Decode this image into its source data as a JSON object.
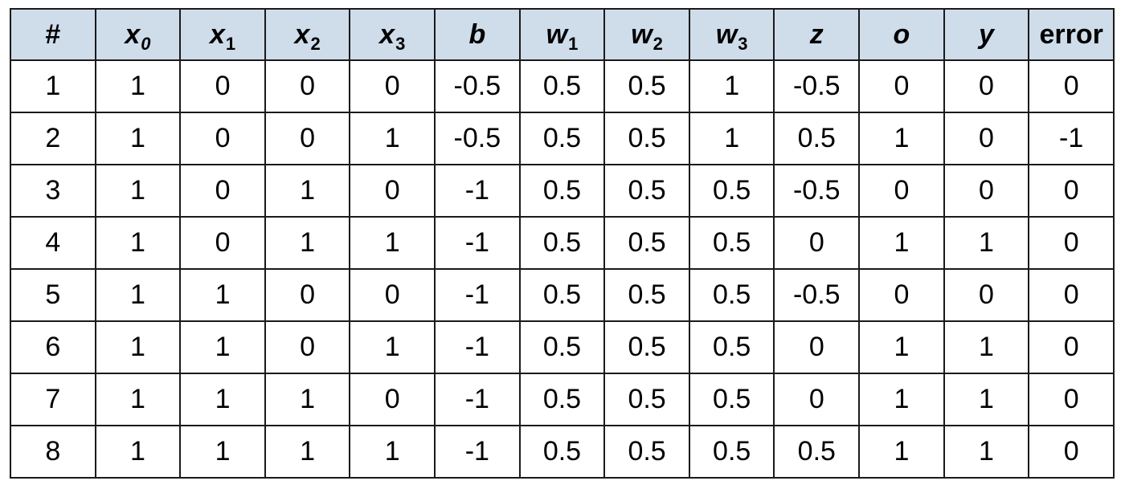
{
  "table": {
    "headers": [
      {
        "base": "#",
        "sub": "",
        "italic": false,
        "sub_italic": false
      },
      {
        "base": "x",
        "sub": "0",
        "italic": true,
        "sub_italic": true
      },
      {
        "base": "x",
        "sub": "1",
        "italic": true,
        "sub_italic": false
      },
      {
        "base": "x",
        "sub": "2",
        "italic": true,
        "sub_italic": false
      },
      {
        "base": "x",
        "sub": "3",
        "italic": true,
        "sub_italic": false
      },
      {
        "base": "b",
        "sub": "",
        "italic": true,
        "sub_italic": false
      },
      {
        "base": "w",
        "sub": "1",
        "italic": true,
        "sub_italic": false
      },
      {
        "base": "w",
        "sub": "2",
        "italic": true,
        "sub_italic": false
      },
      {
        "base": "w",
        "sub": "3",
        "italic": true,
        "sub_italic": false
      },
      {
        "base": "z",
        "sub": "",
        "italic": true,
        "sub_italic": false
      },
      {
        "base": "o",
        "sub": "",
        "italic": true,
        "sub_italic": false
      },
      {
        "base": "y",
        "sub": "",
        "italic": true,
        "sub_italic": false
      },
      {
        "base": "error",
        "sub": "",
        "italic": false,
        "sub_italic": false
      }
    ],
    "rows": [
      [
        "1",
        "1",
        "0",
        "0",
        "0",
        "-0.5",
        "0.5",
        "0.5",
        "1",
        "-0.5",
        "0",
        "0",
        "0"
      ],
      [
        "2",
        "1",
        "0",
        "0",
        "1",
        "-0.5",
        "0.5",
        "0.5",
        "1",
        "0.5",
        "1",
        "0",
        "-1"
      ],
      [
        "3",
        "1",
        "0",
        "1",
        "0",
        "-1",
        "0.5",
        "0.5",
        "0.5",
        "-0.5",
        "0",
        "0",
        "0"
      ],
      [
        "4",
        "1",
        "0",
        "1",
        "1",
        "-1",
        "0.5",
        "0.5",
        "0.5",
        "0",
        "1",
        "1",
        "0"
      ],
      [
        "5",
        "1",
        "1",
        "0",
        "0",
        "-1",
        "0.5",
        "0.5",
        "0.5",
        "-0.5",
        "0",
        "0",
        "0"
      ],
      [
        "6",
        "1",
        "1",
        "0",
        "1",
        "-1",
        "0.5",
        "0.5",
        "0.5",
        "0",
        "1",
        "1",
        "0"
      ],
      [
        "7",
        "1",
        "1",
        "1",
        "0",
        "-1",
        "0.5",
        "0.5",
        "0.5",
        "0",
        "1",
        "1",
        "0"
      ],
      [
        "8",
        "1",
        "1",
        "1",
        "1",
        "-1",
        "0.5",
        "0.5",
        "0.5",
        "0.5",
        "1",
        "1",
        "0"
      ]
    ]
  },
  "colors": {
    "header_background": "#cfdcea",
    "border": "#1a1a1a",
    "text": "#000000"
  }
}
